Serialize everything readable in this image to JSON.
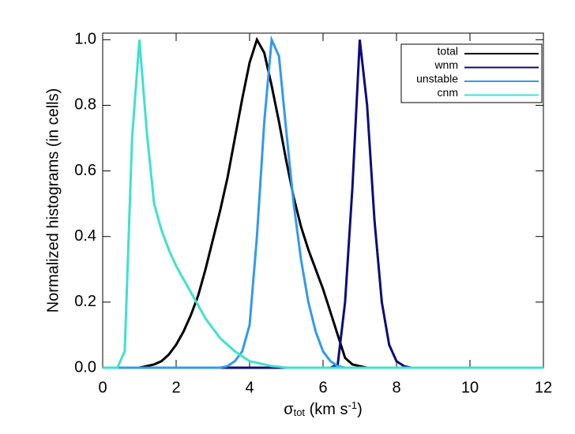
{
  "chart_data": {
    "type": "line",
    "ylabel": "Normalized histograms (in cells)",
    "xlabel_parts": [
      "σ",
      "tot",
      " (km s",
      "-1",
      ")"
    ],
    "xlim": [
      0,
      12
    ],
    "xticks": [
      0,
      2,
      4,
      6,
      8,
      10,
      12
    ],
    "ylim": [
      0,
      1.02
    ],
    "yticks": [
      {
        "value": 0,
        "label": "0.0"
      },
      0.2,
      0.4,
      0.6,
      0.8,
      {
        "value": 1,
        "label": "1.0"
      }
    ],
    "legend": "upper right",
    "x": [
      0,
      0.2,
      0.4,
      0.6,
      0.8,
      1,
      1.2,
      1.4,
      1.6,
      1.8,
      2,
      2.2,
      2.4,
      2.6,
      2.8,
      3,
      3.2,
      3.4,
      3.6,
      3.8,
      4,
      4.2,
      4.4,
      4.6,
      4.8,
      5,
      5.2,
      5.4,
      5.6,
      5.8,
      6,
      6.2,
      6.4,
      6.6,
      6.8,
      7,
      7.2,
      7.4,
      7.6,
      7.8,
      8,
      8.2,
      8.4,
      8.6,
      8.8,
      9,
      9.2,
      9.4,
      9.6,
      9.8,
      10,
      10.2,
      10.4,
      10.6,
      10.8,
      11,
      11.2,
      11.4,
      11.6,
      11.8,
      12
    ],
    "series": [
      {
        "name": "total",
        "color": "#000000",
        "values": [
          0,
          0,
          0,
          0,
          0,
          0,
          0.005,
          0.01,
          0.02,
          0.04,
          0.07,
          0.11,
          0.16,
          0.22,
          0.3,
          0.39,
          0.48,
          0.58,
          0.7,
          0.82,
          0.93,
          1.0,
          0.96,
          0.86,
          0.75,
          0.63,
          0.52,
          0.43,
          0.36,
          0.3,
          0.24,
          0.17,
          0.1,
          0.03,
          0.01,
          0.005,
          0,
          0,
          0,
          0,
          0,
          0,
          0,
          0,
          0,
          0,
          0,
          0,
          0,
          0,
          0,
          0,
          0,
          0,
          0,
          0,
          0,
          0,
          0,
          0,
          0
        ]
      },
      {
        "name": "wnm",
        "color": "#0c0c7a",
        "values": [
          0,
          0,
          0,
          0,
          0,
          0,
          0,
          0,
          0,
          0,
          0,
          0,
          0,
          0,
          0,
          0,
          0,
          0,
          0,
          0,
          0,
          0,
          0,
          0,
          0,
          0,
          0,
          0,
          0,
          0,
          0,
          0,
          0.01,
          0.2,
          0.55,
          1.0,
          0.8,
          0.45,
          0.2,
          0.07,
          0.02,
          0.005,
          0,
          0,
          0,
          0,
          0,
          0,
          0,
          0,
          0,
          0,
          0,
          0,
          0,
          0,
          0,
          0,
          0,
          0,
          0
        ]
      },
      {
        "name": "unstable",
        "color": "#3399ee",
        "values": [
          0,
          0,
          0,
          0,
          0,
          0,
          0,
          0,
          0,
          0,
          0,
          0,
          0,
          0,
          0,
          0,
          0,
          0.005,
          0.02,
          0.05,
          0.13,
          0.4,
          0.75,
          1.0,
          0.95,
          0.72,
          0.5,
          0.33,
          0.2,
          0.11,
          0.05,
          0.02,
          0.005,
          0,
          0,
          0,
          0,
          0,
          0,
          0,
          0,
          0,
          0,
          0,
          0,
          0,
          0,
          0,
          0,
          0,
          0,
          0,
          0,
          0,
          0,
          0,
          0,
          0,
          0,
          0,
          0
        ]
      },
      {
        "name": "cnm",
        "color": "#40e0d0",
        "values": [
          0,
          0,
          0,
          0.05,
          0.7,
          1.0,
          0.72,
          0.5,
          0.42,
          0.36,
          0.31,
          0.27,
          0.23,
          0.19,
          0.15,
          0.12,
          0.09,
          0.07,
          0.05,
          0.035,
          0.02,
          0.015,
          0.01,
          0.005,
          0.003,
          0,
          0,
          0,
          0,
          0,
          0,
          0,
          0,
          0,
          0,
          0,
          0,
          0,
          0,
          0,
          0,
          0,
          0,
          0,
          0,
          0,
          0,
          0,
          0,
          0,
          0,
          0,
          0,
          0,
          0,
          0,
          0,
          0,
          0,
          0,
          0
        ]
      }
    ]
  }
}
